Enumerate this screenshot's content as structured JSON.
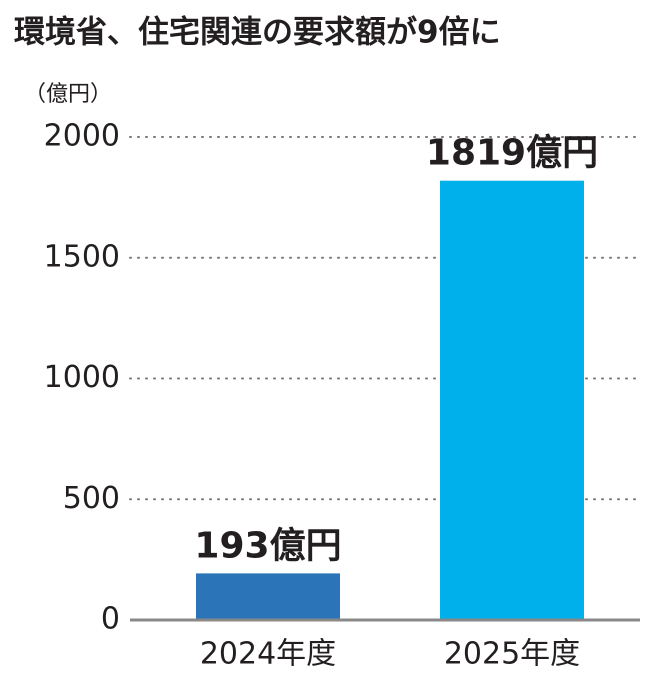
{
  "chart_data": {
    "type": "bar",
    "title": "環境省、住宅関連の要求額が9倍に",
    "y_unit": "（億円）",
    "categories": [
      "2024年度",
      "2025年度"
    ],
    "values": [
      193,
      1819
    ],
    "value_labels": [
      "193億円",
      "1819億円"
    ],
    "colors": [
      "#2c74b8",
      "#00b0ea"
    ],
    "ylim": [
      0,
      2000
    ],
    "yticks": [
      0,
      500,
      1000,
      1500,
      2000
    ],
    "grid": true
  }
}
